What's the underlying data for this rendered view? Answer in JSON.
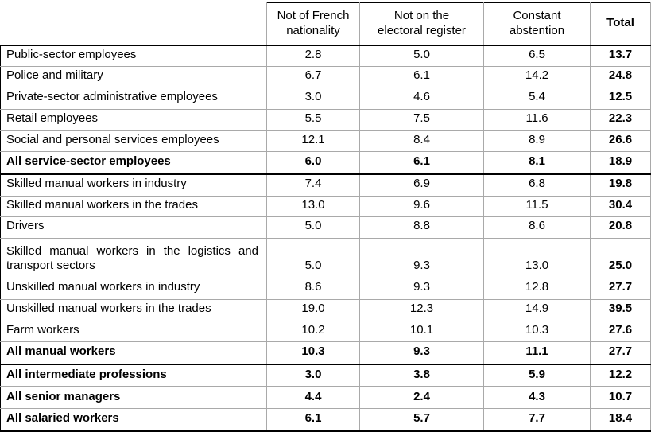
{
  "colors": {
    "grid_line": "#a9a9a9",
    "emphasis_line": "#000000",
    "text": "#000000",
    "background": "#ffffff"
  },
  "table": {
    "header": {
      "row_label": "",
      "columns": [
        "Not of French\nnationality",
        "Not on the\nelectoral register",
        "Constant\nabstention",
        "Total"
      ]
    },
    "rows": [
      {
        "label": "Public-sector employees",
        "values": [
          "2.8",
          "5.0",
          "6.5",
          "13.7"
        ],
        "bold": false
      },
      {
        "label": "Police and military",
        "values": [
          "6.7",
          "6.1",
          "14.2",
          "24.8"
        ],
        "bold": false
      },
      {
        "label": "Private-sector administrative employees",
        "values": [
          "3.0",
          "4.6",
          "5.4",
          "12.5"
        ],
        "bold": false
      },
      {
        "label": "Retail employees",
        "values": [
          "5.5",
          "7.5",
          "11.6",
          "22.3"
        ],
        "bold": false
      },
      {
        "label": "Social and personal services employees",
        "values": [
          "12.1",
          "8.4",
          "8.9",
          "26.6"
        ],
        "bold": false
      },
      {
        "label": "All service-sector employees",
        "values": [
          "6.0",
          "6.1",
          "8.1",
          "18.9"
        ],
        "bold": true
      },
      {
        "label": "Skilled manual workers in industry",
        "values": [
          "7.4",
          "6.9",
          "6.8",
          "19.8"
        ],
        "bold": false
      },
      {
        "label": "Skilled manual workers in the trades",
        "values": [
          "13.0",
          "9.6",
          "11.5",
          "30.4"
        ],
        "bold": false
      },
      {
        "label": "Drivers",
        "values": [
          "5.0",
          "8.8",
          "8.6",
          "20.8"
        ],
        "bold": false
      },
      {
        "label": "Skilled manual workers in the logistics and transport sectors",
        "values": [
          "5.0",
          "9.3",
          "13.0",
          "25.0"
        ],
        "bold": false
      },
      {
        "label": "Unskilled manual workers in industry",
        "values": [
          "8.6",
          "9.3",
          "12.8",
          "27.7"
        ],
        "bold": false
      },
      {
        "label": "Unskilled manual workers in the trades",
        "values": [
          "19.0",
          "12.3",
          "14.9",
          "39.5"
        ],
        "bold": false
      },
      {
        "label": "Farm workers",
        "values": [
          "10.2",
          "10.1",
          "10.3",
          "27.6"
        ],
        "bold": false
      },
      {
        "label": "All manual workers",
        "values": [
          "10.3",
          "9.3",
          "11.1",
          "27.7"
        ],
        "bold": true
      },
      {
        "label": "All intermediate professions",
        "values": [
          "3.0",
          "3.8",
          "5.9",
          "12.2"
        ],
        "bold": true
      },
      {
        "label": "All senior managers",
        "values": [
          "4.4",
          "2.4",
          "4.3",
          "10.7"
        ],
        "bold": true
      },
      {
        "label": "All salaried workers",
        "values": [
          "6.1",
          "5.7",
          "7.7",
          "18.4"
        ],
        "bold": true
      }
    ]
  }
}
